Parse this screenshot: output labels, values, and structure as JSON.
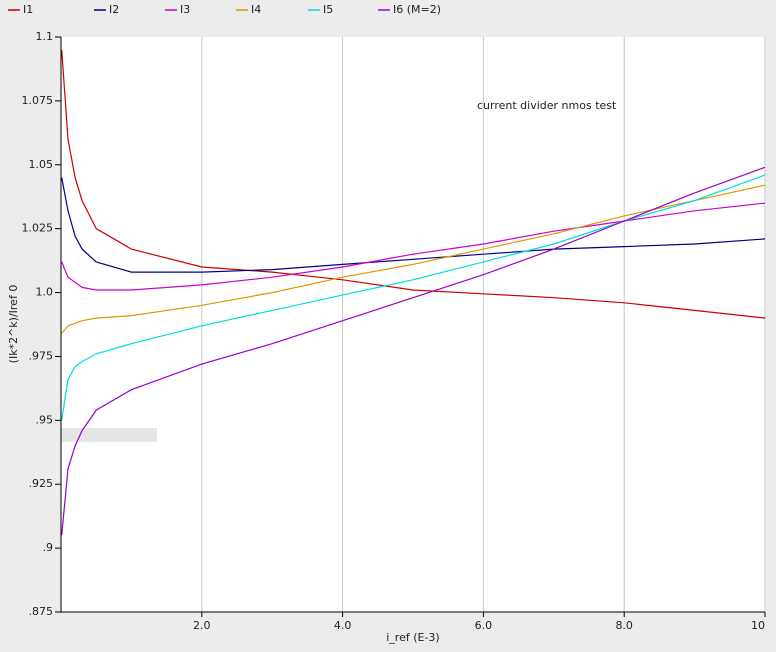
{
  "chart_data": {
    "type": "line",
    "title": "current divider nmos test",
    "x_label": "i_ref (E-3)",
    "y_label": "(Ik*2^k)/Iref 0",
    "x": [
      0.01,
      0.1,
      0.2,
      0.3,
      0.5,
      1,
      2,
      3,
      4,
      5,
      6,
      7,
      8,
      9,
      10
    ],
    "series": [
      {
        "name": "I1",
        "color": "#cc0000",
        "values": [
          1.095,
          1.06,
          1.045,
          1.036,
          1.025,
          1.017,
          1.01,
          1.008,
          1.005,
          1.001,
          0.9995,
          0.998,
          0.996,
          0.993,
          0.99
        ]
      },
      {
        "name": "I2",
        "color": "#000080",
        "values": [
          1.045,
          1.032,
          1.022,
          1.017,
          1.012,
          1.008,
          1.008,
          1.009,
          1.011,
          1.013,
          1.015,
          1.017,
          1.018,
          1.019,
          1.021
        ]
      },
      {
        "name": "I3",
        "color": "#cc00cc",
        "values": [
          1.012,
          1.006,
          1.004,
          1.002,
          1.001,
          1.001,
          1.003,
          1.006,
          1.01,
          1.015,
          1.019,
          1.024,
          1.028,
          1.032,
          1.035
        ]
      },
      {
        "name": "I4",
        "color": "#dd9900",
        "values": [
          0.984,
          0.987,
          0.988,
          0.989,
          0.99,
          0.991,
          0.995,
          1.0,
          1.006,
          1.011,
          1.017,
          1.023,
          1.03,
          1.036,
          1.042
        ]
      },
      {
        "name": "I5",
        "color": "#00dddd",
        "values": [
          0.95,
          0.966,
          0.971,
          0.973,
          0.976,
          0.98,
          0.987,
          0.993,
          0.999,
          1.005,
          1.012,
          1.019,
          1.028,
          1.036,
          1.046
        ]
      },
      {
        "name": "I6 (M=2)",
        "color": "#9900cc",
        "values": [
          0.905,
          0.931,
          0.94,
          0.946,
          0.954,
          0.962,
          0.972,
          0.98,
          0.989,
          0.998,
          1.007,
          1.017,
          1.028,
          1.039,
          1.049
        ]
      }
    ],
    "xlim": [
      0,
      10
    ],
    "xticks": [
      {
        "value": 2,
        "label": "2.0"
      },
      {
        "value": 4,
        "label": "4.0"
      },
      {
        "value": 6,
        "label": "6.0"
      },
      {
        "value": 8,
        "label": "8.0"
      },
      10
    ],
    "ylim": [
      0.875,
      1.1
    ],
    "yticks": [
      {
        "value": 0.875,
        "label": ".875"
      },
      {
        "value": 0.9,
        "label": ".9"
      },
      {
        "value": 0.925,
        "label": ".925"
      },
      {
        "value": 0.95,
        "label": ".95"
      },
      {
        "value": 0.975,
        "label": ".975"
      },
      {
        "value": 1.0,
        "label": "1.0"
      },
      1.025,
      1.05,
      1.075,
      1.1
    ],
    "grid": true,
    "legend": "top"
  }
}
